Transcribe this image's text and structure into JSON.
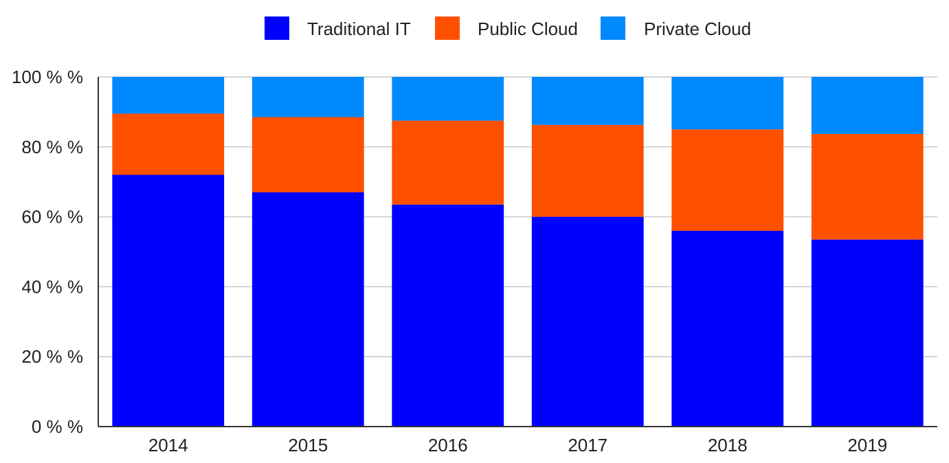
{
  "chart_data": {
    "type": "bar",
    "stacked": true,
    "categories": [
      "2014",
      "2015",
      "2016",
      "2017",
      "2018",
      "2019"
    ],
    "series": [
      {
        "name": "Traditional IT",
        "color": "#0000FF",
        "values": [
          72,
          67,
          63.5,
          60,
          56,
          53.5
        ]
      },
      {
        "name": "Public Cloud",
        "color": "#FF5000",
        "values": [
          17.5,
          21.5,
          24,
          26.3,
          29,
          30.2
        ]
      },
      {
        "name": "Private Cloud",
        "color": "#0088FF",
        "values": [
          10.5,
          11.5,
          12.5,
          13.7,
          15,
          16.3
        ]
      }
    ],
    "yticks": [
      "0 % %",
      "20 % %",
      "40 % %",
      "60 % %",
      "80 % %",
      "100 % %"
    ],
    "ylim": [
      0,
      100
    ],
    "grid": true,
    "legend_position": "top-center",
    "title": "",
    "xlabel": "",
    "ylabel": ""
  }
}
